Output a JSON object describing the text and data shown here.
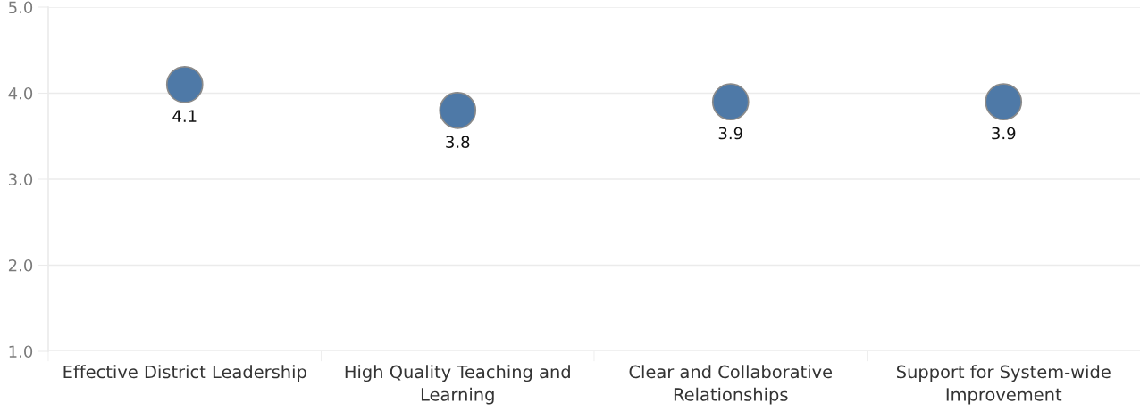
{
  "chart_data": {
    "type": "scatter",
    "categories": [
      "Effective District Leadership",
      "High Quality Teaching and Learning",
      "Clear and Collaborative Relationships",
      "Support for System-wide Improvement"
    ],
    "values": [
      4.1,
      3.8,
      3.9,
      3.9
    ],
    "color": "#4e79a7",
    "ylim": [
      1,
      5
    ],
    "yticks": [
      {
        "value": 1,
        "label": "1.0"
      },
      {
        "value": 2,
        "label": "2.0"
      },
      {
        "value": 3,
        "label": "3.0"
      },
      {
        "value": 4,
        "label": "4.0"
      },
      {
        "value": 5,
        "label": "5.0"
      }
    ],
    "grid": "y",
    "marker": "circle",
    "data_labels": true
  }
}
